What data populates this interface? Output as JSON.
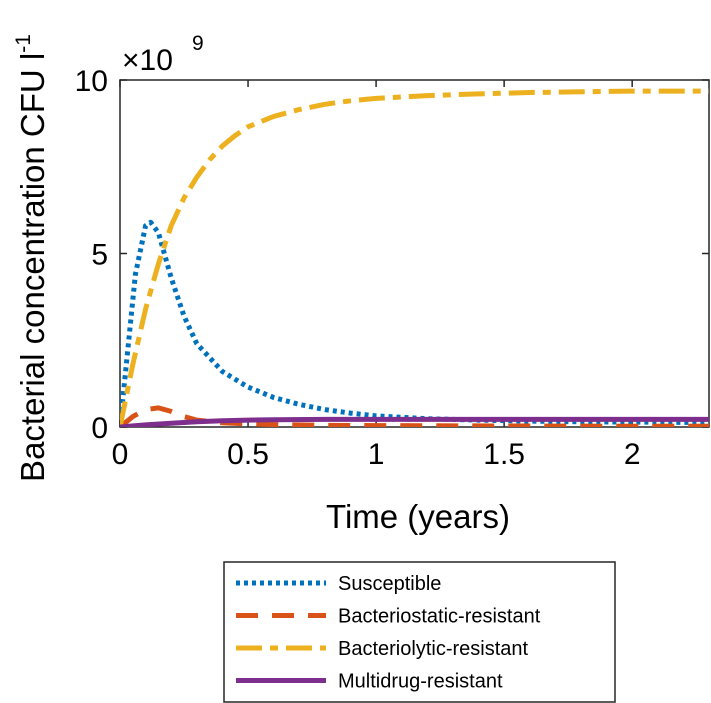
{
  "chart_data": {
    "type": "line",
    "xlabel": "Time (years)",
    "ylabel": "Bacterial concentration CFU l",
    "ylabel_superscript": "-1",
    "y_exponent_prefix": "×10",
    "y_exponent_power": "9",
    "xlim": [
      0,
      2.3
    ],
    "ylim": [
      0,
      10
    ],
    "x_ticks": [
      "0",
      "0.5",
      "1",
      "1.5",
      "2"
    ],
    "x_tick_values": [
      0,
      0.5,
      1,
      1.5,
      2
    ],
    "y_ticks": [
      "0",
      "5",
      "10"
    ],
    "y_tick_values": [
      0,
      5,
      10
    ],
    "grid": false,
    "legend_position": "below-plot",
    "series": [
      {
        "name": "Susceptible",
        "color": "#0072BD",
        "style": "dotted",
        "x": [
          0,
          0.03,
          0.06,
          0.1,
          0.12,
          0.15,
          0.2,
          0.25,
          0.3,
          0.4,
          0.5,
          0.6,
          0.7,
          0.8,
          0.9,
          1.0,
          1.2,
          1.4,
          1.6,
          1.8,
          2.0,
          2.3
        ],
        "y": [
          0,
          2.2,
          4.4,
          5.8,
          5.9,
          5.6,
          4.3,
          3.2,
          2.4,
          1.6,
          1.15,
          0.85,
          0.65,
          0.5,
          0.4,
          0.32,
          0.24,
          0.2,
          0.17,
          0.15,
          0.14,
          0.13
        ]
      },
      {
        "name": "Bacteriostatic-resistant",
        "color": "#D95319",
        "style": "dashed",
        "x": [
          0,
          0.05,
          0.1,
          0.15,
          0.2,
          0.25,
          0.3,
          0.4,
          0.5,
          0.6,
          0.8,
          1.0,
          1.5,
          2.0,
          2.3
        ],
        "y": [
          0,
          0.3,
          0.5,
          0.55,
          0.45,
          0.3,
          0.2,
          0.12,
          0.09,
          0.07,
          0.05,
          0.04,
          0.03,
          0.02,
          0.02
        ]
      },
      {
        "name": "Bacteriolytic-resistant",
        "color": "#EDB120",
        "style": "dashdot",
        "x": [
          0,
          0.05,
          0.1,
          0.15,
          0.2,
          0.25,
          0.3,
          0.35,
          0.4,
          0.45,
          0.5,
          0.6,
          0.7,
          0.8,
          0.9,
          1.0,
          1.2,
          1.4,
          1.6,
          1.8,
          2.0,
          2.3
        ],
        "y": [
          0,
          1.8,
          3.4,
          4.7,
          5.8,
          6.6,
          7.2,
          7.7,
          8.1,
          8.4,
          8.65,
          8.95,
          9.15,
          9.3,
          9.4,
          9.47,
          9.55,
          9.6,
          9.64,
          9.66,
          9.68,
          9.68
        ]
      },
      {
        "name": "Multidrug-resistant",
        "color": "#7E2F8E",
        "style": "solid",
        "x": [
          0,
          0.1,
          0.2,
          0.3,
          0.4,
          0.5,
          0.6,
          0.8,
          1.0,
          1.5,
          2.0,
          2.3
        ],
        "y": [
          0,
          0.06,
          0.11,
          0.15,
          0.18,
          0.2,
          0.21,
          0.22,
          0.22,
          0.22,
          0.22,
          0.22
        ]
      }
    ]
  }
}
